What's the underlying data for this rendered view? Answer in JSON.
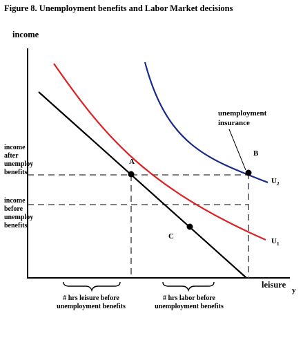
{
  "figure": {
    "title": "Figure 8.  Unemployment benefits and Labor Market decisions"
  },
  "axes": {
    "y_label": "income",
    "x_label": "leisure",
    "x_suffix": "y"
  },
  "side_labels": {
    "income_after": "income\nafter\nunemploy\nbenefits",
    "income_before": "income\nbefore\nunemploy\nbenefits"
  },
  "points": {
    "a": "A",
    "b": "B",
    "c": "C"
  },
  "callout": "unemployment\ninsurance",
  "curves": {
    "u1_main": "U",
    "u1_sub": "1",
    "u2_main": "U",
    "u2_sub": "2"
  },
  "bottom_notes": {
    "leisure_hours": "# hrs leisure before\nunemployment benefits",
    "labor_hours": "# hrs labor before\nunemployment benefits"
  },
  "colors": {
    "u1_curve": "#dd2020",
    "u2_curve": "#1a2a8a",
    "budget_line": "#000000",
    "dashed": "#555555"
  }
}
